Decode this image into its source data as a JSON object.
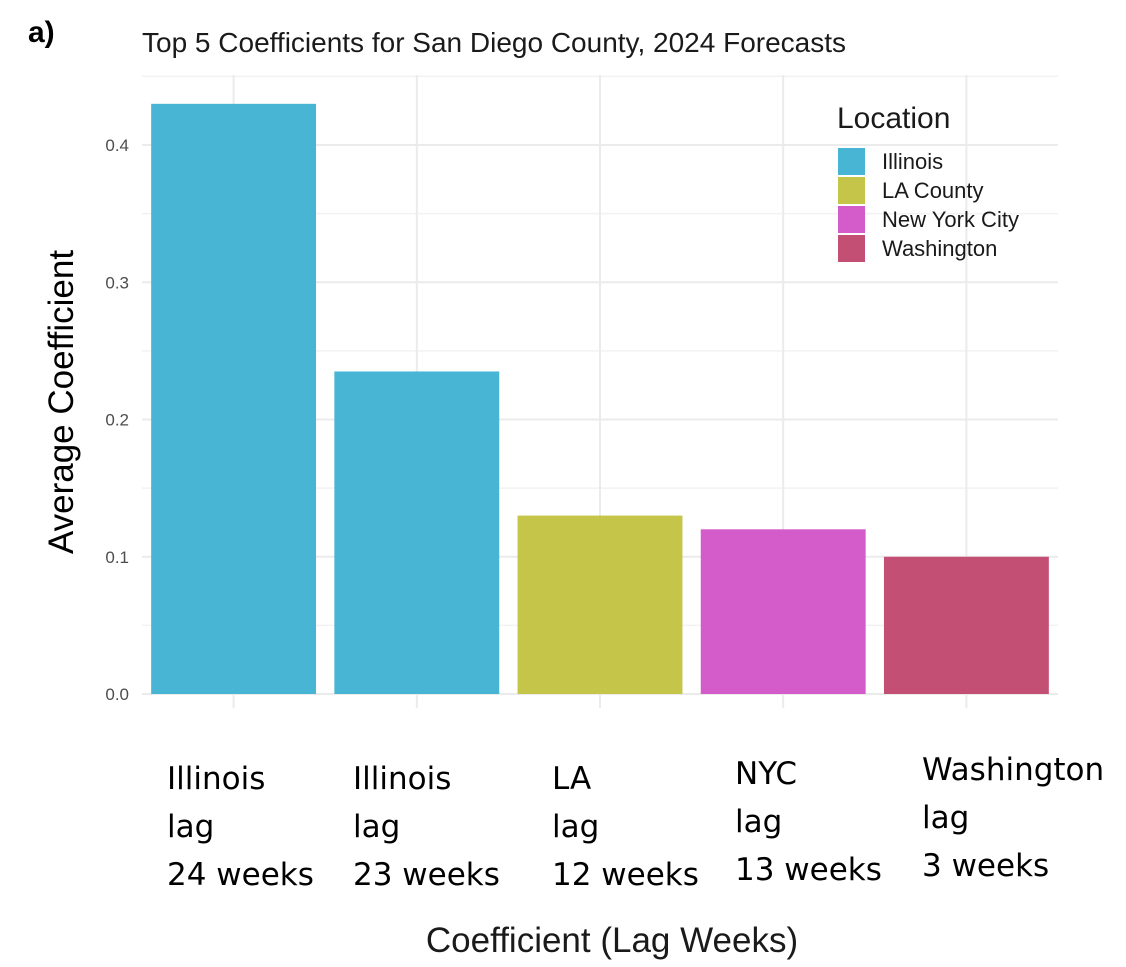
{
  "panel_label": "a)",
  "chart_data": {
    "type": "bar",
    "title": "Top 5 Coefficients for San Diego County, 2024 Forecasts",
    "xlabel": "Coefficient (Lag Weeks)",
    "ylabel": "Average Coefficient",
    "ylim": [
      0,
      0.44
    ],
    "yticks": [
      0.0,
      0.1,
      0.2,
      0.3,
      0.4
    ],
    "ytick_labels": [
      "0.0",
      "0.1",
      "0.2",
      "0.3",
      "0.4"
    ],
    "grid": true,
    "categories": [
      {
        "lines": [
          "Illinois",
          "lag",
          "24 weeks"
        ],
        "location": "Illinois",
        "value": 0.43
      },
      {
        "lines": [
          "Illinois",
          "lag",
          "23 weeks"
        ],
        "location": "Illinois",
        "value": 0.235
      },
      {
        "lines": [
          "LA",
          "lag",
          "12 weeks"
        ],
        "location": "LA County",
        "value": 0.13
      },
      {
        "lines": [
          "NYC",
          "lag",
          "13 weeks"
        ],
        "location": "New York City",
        "value": 0.12
      },
      {
        "lines": [
          "Washington",
          "lag",
          "3 weeks"
        ],
        "location": "Washington",
        "value": 0.1
      }
    ],
    "legend": {
      "title": "Location",
      "position": "top-right",
      "entries": [
        {
          "name": "Illinois",
          "color": "#48b5d5"
        },
        {
          "name": "LA County",
          "color": "#c5c54a"
        },
        {
          "name": "New York City",
          "color": "#d45bca"
        },
        {
          "name": "Washington",
          "color": "#c44f74"
        }
      ]
    }
  }
}
